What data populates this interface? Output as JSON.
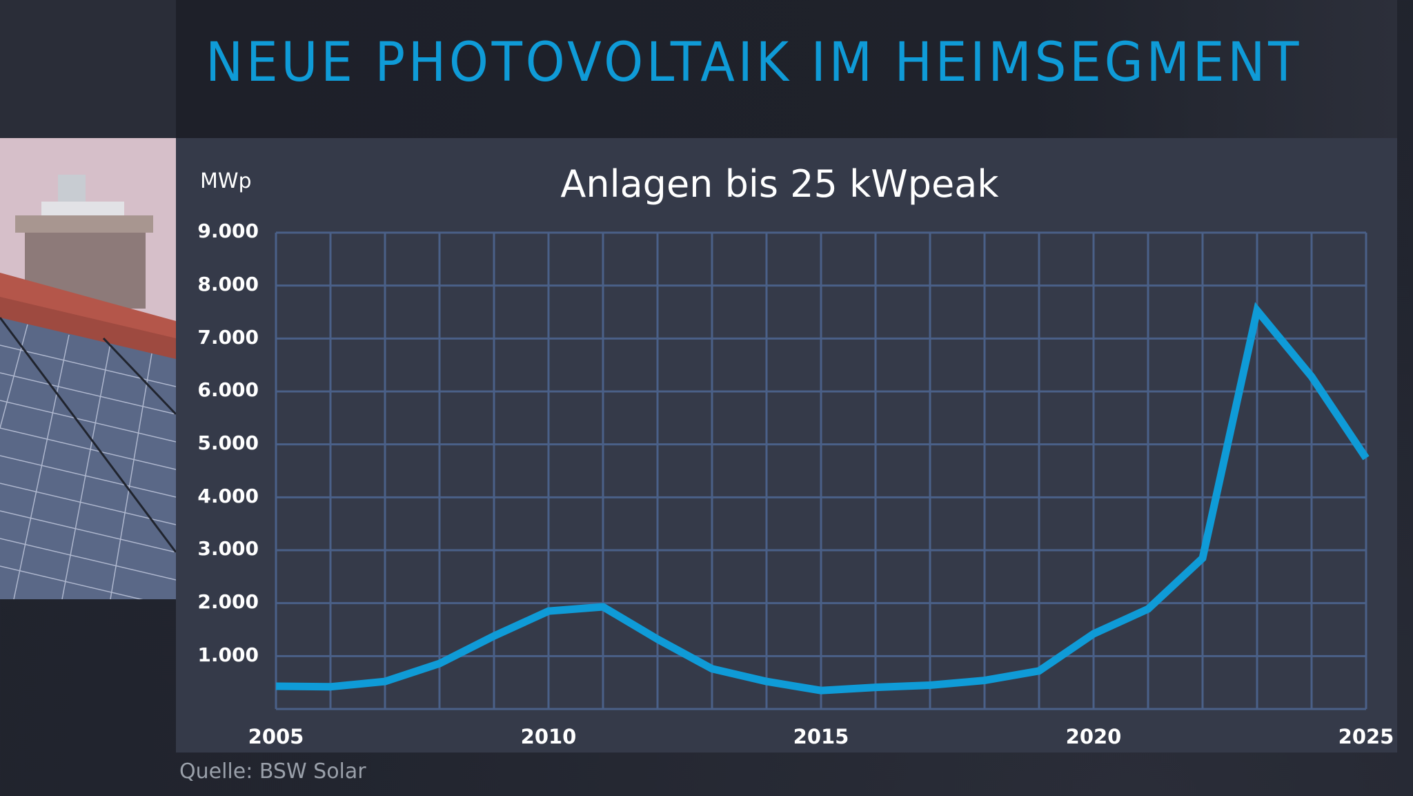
{
  "header": {
    "title": "NEUE PHOTOVOLTAIK IM HEIMSEGMENT"
  },
  "chart": {
    "unit_label": "MWp",
    "subtitle": "Anlagen bis 25 kWpeak",
    "source": "Quelle: BSW Solar",
    "y_ticks": [
      "9.000",
      "8.000",
      "7.000",
      "6.000",
      "5.000",
      "4.000",
      "3.000",
      "2.000",
      "1.000"
    ],
    "x_ticks": [
      "2005",
      "2010",
      "2015",
      "2020",
      "2025"
    ],
    "line_color": "#0f9bd7",
    "grid_color": "#4a6088"
  },
  "chart_data": {
    "type": "line",
    "title": "Anlagen bis 25 kWpeak",
    "xlabel": "",
    "ylabel": "MWp",
    "x": [
      2005,
      2006,
      2007,
      2008,
      2009,
      2010,
      2011,
      2012,
      2013,
      2014,
      2015,
      2016,
      2017,
      2018,
      2019,
      2020,
      2021,
      2022,
      2023,
      2024,
      2025
    ],
    "series": [
      {
        "name": "Neue Photovoltaik im Heimsegment (MWp)",
        "values": [
          430,
          420,
          520,
          860,
          1380,
          1850,
          1930,
          1320,
          760,
          520,
          350,
          410,
          450,
          540,
          720,
          1420,
          1890,
          2850,
          7530,
          6280,
          4740
        ]
      }
    ],
    "x_tick_labels": [
      "2005",
      "2010",
      "2015",
      "2020",
      "2025"
    ],
    "y_tick_labels": [
      "1.000",
      "2.000",
      "3.000",
      "4.000",
      "5.000",
      "6.000",
      "7.000",
      "8.000",
      "9.000"
    ],
    "ylim": [
      0,
      9000
    ],
    "xlim": [
      2005,
      2025
    ],
    "grid": true,
    "legend": "none",
    "source": "Quelle: BSW Solar"
  }
}
